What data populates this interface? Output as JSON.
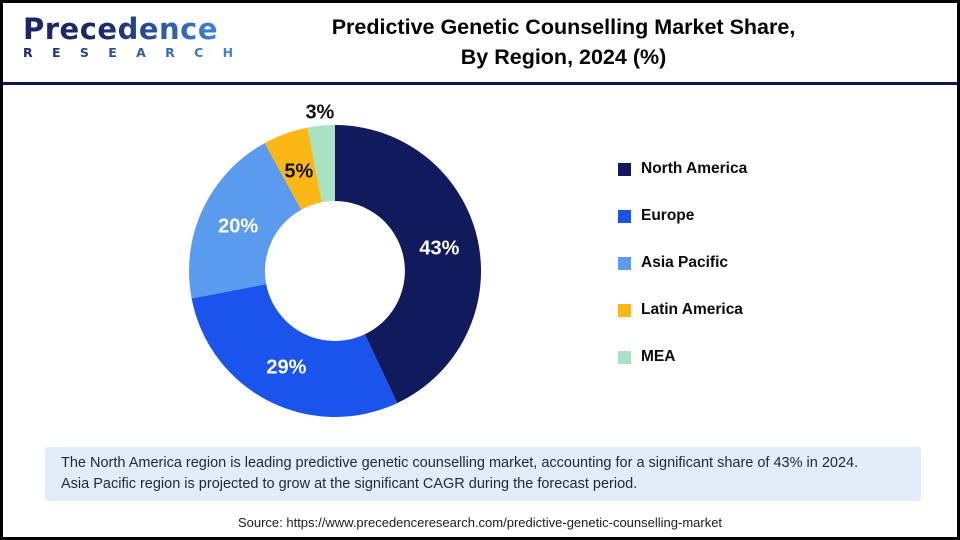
{
  "header": {
    "logo": {
      "name": "Precedence",
      "subtitle": "R E S E A R C H"
    },
    "title_line1": "Predictive Genetic Counselling Market Share,",
    "title_line2": "By Region, 2024 (%)"
  },
  "chart_data": {
    "type": "pie",
    "subtype": "donut",
    "title": "Predictive Genetic Counselling Market Share, By Region, 2024 (%)",
    "unit": "%",
    "categories": [
      "North America",
      "Europe",
      "Asia Pacific",
      "Latin America",
      "MEA"
    ],
    "values": [
      43,
      29,
      20,
      5,
      3
    ],
    "slice_labels": [
      "43%",
      "29%",
      "20%",
      "5%",
      "3%"
    ],
    "colors": [
      "#121A5E",
      "#1B54EC",
      "#5B9BEE",
      "#FBB814",
      "#A8E2C2"
    ],
    "slice_label_colors": [
      "#FFFFFF",
      "#FFFFFF",
      "#FFFFFF",
      "#111111",
      "#111111"
    ],
    "slice_label_outside": [
      false,
      false,
      false,
      false,
      true
    ],
    "legend_position": "right",
    "start_angle_deg": 0,
    "direction": "clockwise"
  },
  "note": {
    "line1": "The North America region is leading predictive genetic counselling market, accounting for a significant share of 43% in 2024.",
    "line2": "Asia Pacific region is projected to grow at the significant CAGR during the forecast period."
  },
  "source": "Source: https://www.precedenceresearch.com/predictive-genetic-counselling-market",
  "colors": {
    "divider": "#10164F",
    "note_bg": "#E1ECF8",
    "logo_dark": "#1B2766",
    "logo_light": "#3F85D9"
  }
}
